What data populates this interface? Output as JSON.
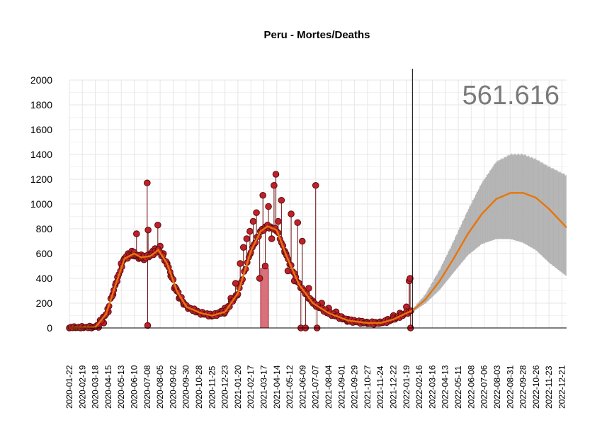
{
  "chart_data": {
    "type": "line",
    "title": "Peru - Mortes/Deaths",
    "annotation": "561.616",
    "xlabel": "",
    "ylabel": "",
    "ylim": [
      0,
      2000
    ],
    "y_ticks": [
      0,
      200,
      400,
      600,
      800,
      1000,
      1200,
      1400,
      1600,
      1800,
      2000
    ],
    "x_range": [
      "2020-01-22",
      "2022-12-31"
    ],
    "x_tick_labels": [
      "2020-01-22",
      "2020-02-19",
      "2020-03-18",
      "2020-04-15",
      "2020-05-13",
      "2020-06-10",
      "2020-07-08",
      "2020-08-05",
      "2020-09-02",
      "2020-09-30",
      "2020-10-28",
      "2020-11-25",
      "2020-12-23",
      "2021-01-20",
      "2021-02-17",
      "2021-03-17",
      "2021-04-14",
      "2021-05-12",
      "2021-06-09",
      "2021-07-07",
      "2021-08-04",
      "2021-09-01",
      "2021-09-29",
      "2021-10-27",
      "2021-11-24",
      "2021-12-22",
      "2022-01-19",
      "2022-02-16",
      "2022-03-16",
      "2022-04-13",
      "2022-05-11",
      "2022-06-08",
      "2022-07-06",
      "2022-08-03",
      "2022-08-31",
      "2022-09-28",
      "2022-10-26",
      "2022-11-23",
      "2022-12-21"
    ],
    "forecast_start": "2022-02-01",
    "grid": true,
    "colors": {
      "points_fill": "#c0202a",
      "points_stroke": "#5a0f0f",
      "stems": "#6b0f0f",
      "smooth_line": "#e8750a",
      "forecast_band": "#b3b3b3",
      "highlight_bar": "#d9707a",
      "cutoff_line": "#000000"
    },
    "series": [
      {
        "kind": "observed_daily_deaths",
        "points": [
          [
            "2020-01-22",
            0
          ],
          [
            "2020-02-15",
            0
          ],
          [
            "2020-03-10",
            0
          ],
          [
            "2020-03-25",
            5
          ],
          [
            "2020-04-05",
            40
          ],
          [
            "2020-04-15",
            130
          ],
          [
            "2020-04-25",
            270
          ],
          [
            "2020-05-05",
            410
          ],
          [
            "2020-05-13",
            520
          ],
          [
            "2020-05-20",
            560
          ],
          [
            "2020-05-28",
            600
          ],
          [
            "2020-06-05",
            620
          ],
          [
            "2020-06-10",
            580
          ],
          [
            "2020-06-15",
            760
          ],
          [
            "2020-06-20",
            560
          ],
          [
            "2020-06-25",
            590
          ],
          [
            "2020-07-01",
            550
          ],
          [
            "2020-07-08",
            1170
          ],
          [
            "2020-07-09",
            20
          ],
          [
            "2020-07-10",
            790
          ],
          [
            "2020-07-15",
            600
          ],
          [
            "2020-07-20",
            620
          ],
          [
            "2020-07-25",
            640
          ],
          [
            "2020-07-31",
            830
          ],
          [
            "2020-08-05",
            660
          ],
          [
            "2020-08-12",
            600
          ],
          [
            "2020-08-20",
            520
          ],
          [
            "2020-08-28",
            420
          ],
          [
            "2020-09-05",
            320
          ],
          [
            "2020-09-15",
            240
          ],
          [
            "2020-09-25",
            190
          ],
          [
            "2020-10-05",
            160
          ],
          [
            "2020-10-15",
            140
          ],
          [
            "2020-10-28",
            125
          ],
          [
            "2020-11-10",
            110
          ],
          [
            "2020-11-25",
            105
          ],
          [
            "2020-12-05",
            115
          ],
          [
            "2020-12-15",
            135
          ],
          [
            "2020-12-23",
            160
          ],
          [
            "2021-01-05",
            240
          ],
          [
            "2021-01-15",
            360
          ],
          [
            "2021-01-25",
            520
          ],
          [
            "2021-02-01",
            650
          ],
          [
            "2021-02-08",
            720
          ],
          [
            "2021-02-15",
            780
          ],
          [
            "2021-02-22",
            860
          ],
          [
            "2021-03-01",
            930
          ],
          [
            "2021-03-08",
            400
          ],
          [
            "2021-03-15",
            1070
          ],
          [
            "2021-03-20",
            500
          ],
          [
            "2021-03-27",
            980
          ],
          [
            "2021-04-03",
            720
          ],
          [
            "2021-04-08",
            1150
          ],
          [
            "2021-04-12",
            1240
          ],
          [
            "2021-04-17",
            860
          ],
          [
            "2021-04-24",
            1030
          ],
          [
            "2021-05-01",
            620
          ],
          [
            "2021-05-08",
            460
          ],
          [
            "2021-05-15",
            920
          ],
          [
            "2021-05-22",
            380
          ],
          [
            "2021-05-29",
            850
          ],
          [
            "2021-06-05",
            0
          ],
          [
            "2021-06-08",
            700
          ],
          [
            "2021-06-15",
            0
          ],
          [
            "2021-06-22",
            320
          ],
          [
            "2021-06-30",
            220
          ],
          [
            "2021-07-07",
            1150
          ],
          [
            "2021-07-10",
            0
          ],
          [
            "2021-07-20",
            200
          ],
          [
            "2021-08-04",
            160
          ],
          [
            "2021-08-20",
            130
          ],
          [
            "2021-09-01",
            90
          ],
          [
            "2021-09-15",
            70
          ],
          [
            "2021-09-29",
            50
          ],
          [
            "2021-10-15",
            40
          ],
          [
            "2021-10-27",
            35
          ],
          [
            "2021-11-10",
            30
          ],
          [
            "2021-11-24",
            40
          ],
          [
            "2021-12-10",
            70
          ],
          [
            "2021-12-22",
            100
          ],
          [
            "2022-01-05",
            120
          ],
          [
            "2022-01-19",
            170
          ],
          [
            "2022-01-25",
            380
          ],
          [
            "2022-01-27",
            400
          ],
          [
            "2022-01-28",
            0
          ]
        ]
      },
      {
        "kind": "smoothed_trend",
        "points": [
          [
            "2020-01-22",
            0
          ],
          [
            "2020-03-18",
            5
          ],
          [
            "2020-04-10",
            110
          ],
          [
            "2020-05-01",
            350
          ],
          [
            "2020-05-20",
            560
          ],
          [
            "2020-06-10",
            600
          ],
          [
            "2020-06-25",
            570
          ],
          [
            "2020-07-15",
            580
          ],
          [
            "2020-08-01",
            630
          ],
          [
            "2020-08-20",
            520
          ],
          [
            "2020-09-10",
            300
          ],
          [
            "2020-10-01",
            170
          ],
          [
            "2020-11-01",
            120
          ],
          [
            "2020-11-25",
            100
          ],
          [
            "2020-12-23",
            130
          ],
          [
            "2021-01-20",
            280
          ],
          [
            "2021-02-17",
            620
          ],
          [
            "2021-03-10",
            780
          ],
          [
            "2021-03-25",
            820
          ],
          [
            "2021-04-14",
            790
          ],
          [
            "2021-05-05",
            580
          ],
          [
            "2021-06-01",
            350
          ],
          [
            "2021-07-01",
            200
          ],
          [
            "2021-08-04",
            120
          ],
          [
            "2021-09-15",
            60
          ],
          [
            "2021-10-27",
            40
          ],
          [
            "2021-11-24",
            40
          ],
          [
            "2021-12-22",
            70
          ],
          [
            "2022-01-19",
            120
          ],
          [
            "2022-02-01",
            140
          ]
        ]
      },
      {
        "kind": "forecast_mean",
        "points": [
          [
            "2022-02-01",
            140
          ],
          [
            "2022-03-01",
            230
          ],
          [
            "2022-04-01",
            380
          ],
          [
            "2022-05-01",
            560
          ],
          [
            "2022-06-01",
            760
          ],
          [
            "2022-07-01",
            920
          ],
          [
            "2022-08-01",
            1040
          ],
          [
            "2022-09-01",
            1090
          ],
          [
            "2022-09-28",
            1090
          ],
          [
            "2022-10-26",
            1050
          ],
          [
            "2022-11-23",
            960
          ],
          [
            "2022-12-31",
            810
          ]
        ]
      },
      {
        "kind": "forecast_band",
        "lower": [
          [
            "2022-02-01",
            130
          ],
          [
            "2022-03-01",
            200
          ],
          [
            "2022-04-01",
            310
          ],
          [
            "2022-05-01",
            450
          ],
          [
            "2022-06-01",
            590
          ],
          [
            "2022-07-01",
            680
          ],
          [
            "2022-08-01",
            720
          ],
          [
            "2022-09-01",
            720
          ],
          [
            "2022-09-28",
            690
          ],
          [
            "2022-10-26",
            630
          ],
          [
            "2022-11-23",
            530
          ],
          [
            "2022-12-31",
            420
          ]
        ],
        "upper": [
          [
            "2022-02-01",
            150
          ],
          [
            "2022-03-01",
            270
          ],
          [
            "2022-04-01",
            470
          ],
          [
            "2022-05-01",
            700
          ],
          [
            "2022-06-01",
            950
          ],
          [
            "2022-07-01",
            1170
          ],
          [
            "2022-08-01",
            1340
          ],
          [
            "2022-09-01",
            1400
          ],
          [
            "2022-09-28",
            1400
          ],
          [
            "2022-10-26",
            1360
          ],
          [
            "2022-11-23",
            1300
          ],
          [
            "2022-12-31",
            1230
          ]
        ]
      }
    ],
    "highlight_bar": {
      "x_start": "2021-03-10",
      "x_end": "2021-03-27",
      "value": 480
    }
  }
}
